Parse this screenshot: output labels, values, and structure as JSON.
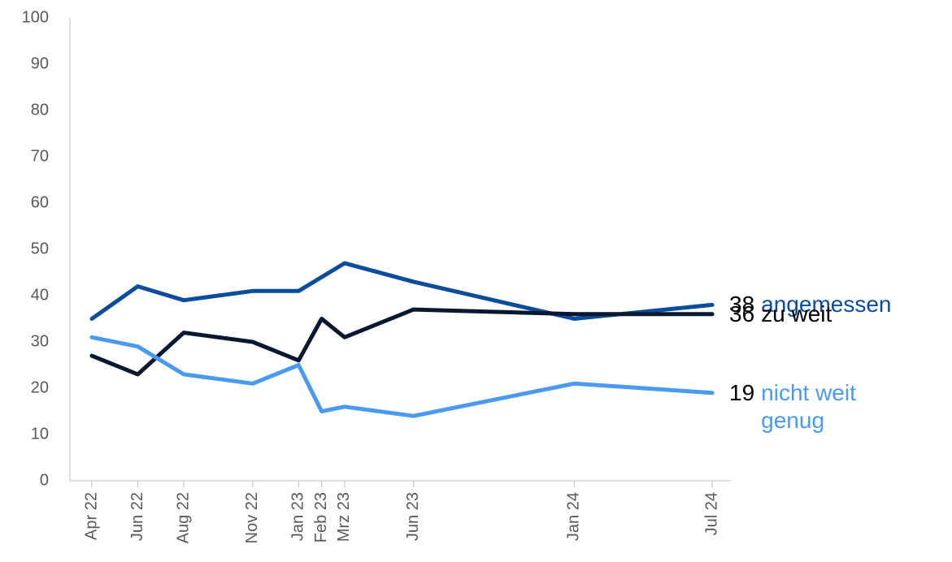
{
  "chart_data": {
    "type": "line",
    "x": [
      "Apr 22",
      "Jun 22",
      "Aug 22",
      "Nov 22",
      "Jan 23",
      "Feb 23",
      "Mrz 23",
      "Jun 23",
      "Jan 24",
      "Jul 24"
    ],
    "series": [
      {
        "name": "angemessen",
        "color": "#0b4c9c",
        "values": [
          35,
          42,
          39,
          41,
          41,
          44,
          47,
          43,
          35,
          38
        ]
      },
      {
        "name": "zu weit",
        "color": "#0a1731",
        "values": [
          27,
          23,
          32,
          30,
          26,
          35,
          31,
          37,
          36,
          36
        ]
      },
      {
        "name": "nicht weit genug",
        "color": "#4a9af0",
        "values": [
          31,
          29,
          23,
          21,
          25,
          15,
          16,
          14,
          21,
          19
        ]
      }
    ],
    "ylim": [
      0,
      100
    ],
    "yticks": [
      0,
      10,
      20,
      30,
      40,
      50,
      60,
      70,
      80,
      90,
      100
    ]
  }
}
